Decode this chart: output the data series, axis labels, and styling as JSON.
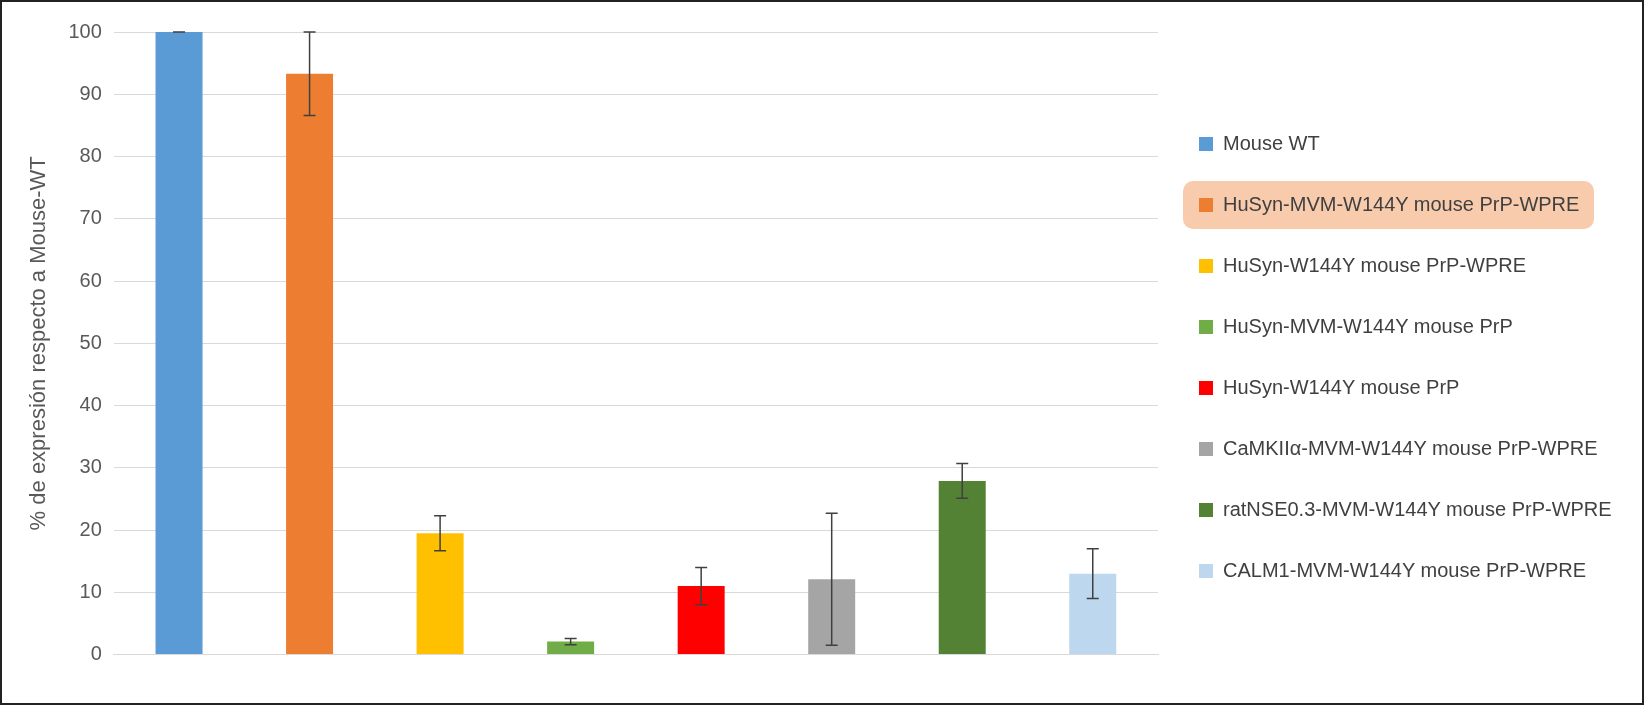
{
  "chart_data": {
    "type": "bar",
    "ylabel": "% de expresión respecto a Mouse-WT",
    "categories": [
      null,
      null,
      null,
      null,
      null,
      null,
      null,
      null
    ],
    "ylim": [
      0,
      100
    ],
    "yticks": [
      0,
      10,
      20,
      30,
      40,
      50,
      60,
      70,
      80,
      90,
      100
    ],
    "grid": "y",
    "legend": "right",
    "series": [
      {
        "name": "Mouse WT",
        "color": "#5b9bd5",
        "values": [
          100,
          null,
          null,
          null,
          null,
          null,
          null,
          null
        ],
        "errors": [
          0,
          null,
          null,
          null,
          null,
          null,
          null,
          null
        ]
      },
      {
        "name": "HuSyn-MVM-W144Y mouse PrP-WPRE",
        "color": "#ed7d31",
        "values": [
          null,
          93.3,
          null,
          null,
          null,
          null,
          null,
          null
        ],
        "errors": [
          null,
          6.7,
          null,
          null,
          null,
          null,
          null,
          null
        ]
      },
      {
        "name": "HuSyn-W144Y mouse PrP-WPRE",
        "color": "#ffc000",
        "values": [
          null,
          null,
          19.5,
          null,
          null,
          null,
          null,
          null
        ],
        "errors": [
          null,
          null,
          2.8,
          null,
          null,
          null,
          null,
          null
        ]
      },
      {
        "name": "HuSyn-MVM-W144Y mouse PrP",
        "color": "#70ad47",
        "values": [
          null,
          null,
          null,
          2.1,
          null,
          null,
          null,
          null
        ],
        "errors": [
          null,
          null,
          null,
          0.5,
          null,
          null,
          null,
          null
        ]
      },
      {
        "name": "HuSyn-W144Y mouse PrP",
        "color": "#ff0000",
        "values": [
          null,
          null,
          null,
          null,
          11,
          null,
          null,
          null
        ],
        "errors": [
          null,
          null,
          null,
          null,
          3,
          null,
          null,
          null
        ]
      },
      {
        "name": "CaMKIIα-MVM-W144Y mouse PrP-WPRE",
        "color": "#a5a5a5",
        "values": [
          null,
          null,
          null,
          null,
          null,
          12.1,
          null,
          null
        ],
        "errors": [
          null,
          null,
          null,
          null,
          null,
          10.6,
          null,
          null
        ]
      },
      {
        "name": "ratNSE0.3-MVM-W144Y mouse PrP-WPRE",
        "color": "#548235",
        "values": [
          null,
          null,
          null,
          null,
          null,
          null,
          27.9,
          null
        ],
        "errors": [
          null,
          null,
          null,
          null,
          null,
          null,
          2.8,
          null
        ]
      },
      {
        "name": "CALM1-MVM-W144Y mouse PrP-WPRE",
        "color": "#bdd7ee",
        "values": [
          null,
          null,
          null,
          null,
          null,
          null,
          null,
          13
        ],
        "errors": [
          null,
          null,
          null,
          null,
          null,
          null,
          null,
          4
        ]
      }
    ]
  }
}
